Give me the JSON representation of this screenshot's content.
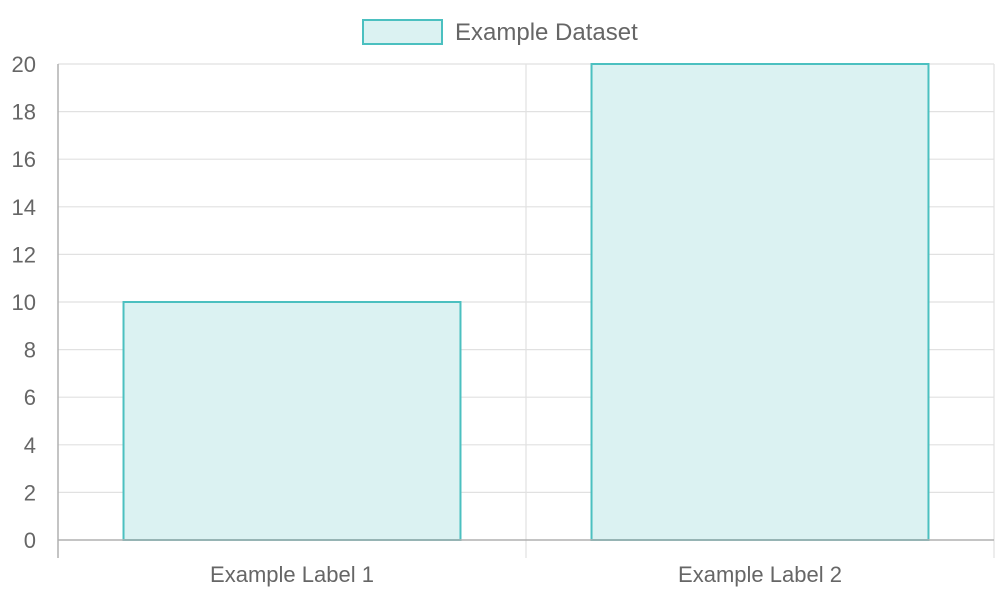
{
  "chart_data": {
    "type": "bar",
    "title": "",
    "xlabel": "",
    "ylabel": "",
    "categories": [
      "Example Label 1",
      "Example Label 2"
    ],
    "series": [
      {
        "name": "Example Dataset",
        "values": [
          10,
          20
        ],
        "fill_color": "#dbf2f2",
        "border_color": "#4bc0c0"
      }
    ],
    "ylim": [
      0,
      20
    ],
    "y_ticks": [
      "0",
      "2",
      "4",
      "6",
      "8",
      "10",
      "12",
      "14",
      "16",
      "18",
      "20"
    ],
    "grid": true,
    "legend_position": "top-center"
  }
}
